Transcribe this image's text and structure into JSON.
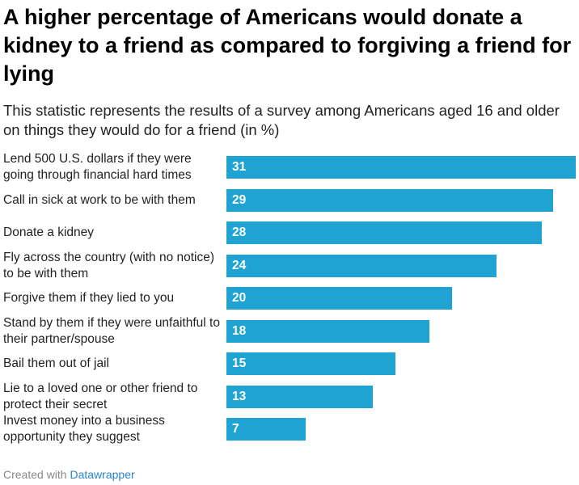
{
  "title": "A higher percentage of Americans would donate a kidney to a friend as compared to forgiving a friend for lying",
  "subtitle": "This statistic represents the results of a survey among Americans aged 16 and older on things they would do for a friend (in %)",
  "footer": {
    "prefix": "Created with",
    "brand": "Datawrapper"
  },
  "colors": {
    "bar": "#1ea3d3",
    "footer_brand": "#2a85c8"
  },
  "chart_data": {
    "type": "bar",
    "orientation": "horizontal",
    "categories": [
      "Lend 500 U.S. dollars if they were going through financial hard times",
      "Call in sick at work to be with them",
      "Donate a kidney",
      "Fly across the country (with no notice) to be with them",
      "Forgive them if they lied to you",
      "Stand by them if they were unfaithful to their partner/spouse",
      "Bail them out of jail",
      "Lie to a loved one or other friend to protect their secret",
      "Invest money into a business opportunity they suggest"
    ],
    "values": [
      31,
      29,
      28,
      24,
      20,
      18,
      15,
      13,
      7
    ],
    "xlim": [
      0,
      31
    ],
    "grid": false,
    "legend": "none"
  }
}
